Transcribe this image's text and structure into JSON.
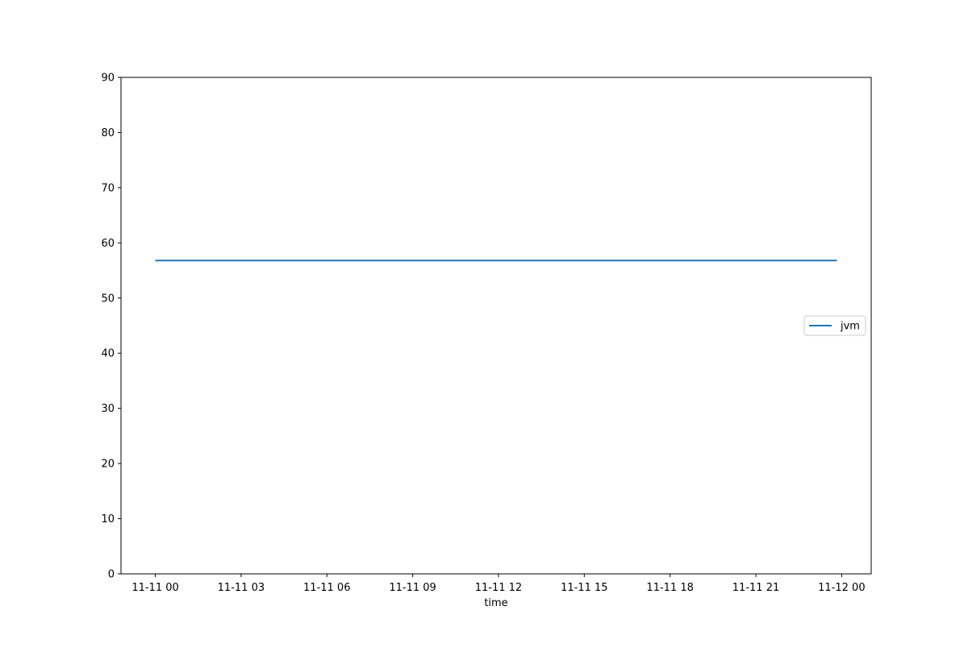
{
  "chart_data": {
    "type": "line",
    "title": "",
    "xlabel": "time",
    "ylabel": "",
    "x": [
      "2024-11-11 00:00",
      "2024-11-11 01:00",
      "2024-11-11 02:00",
      "2024-11-11 03:00",
      "2024-11-11 04:00",
      "2024-11-11 05:00",
      "2024-11-11 06:00",
      "2024-11-11 07:00",
      "2024-11-11 08:00",
      "2024-11-11 09:00",
      "2024-11-11 10:00",
      "2024-11-11 11:00",
      "2024-11-11 12:00",
      "2024-11-11 13:00",
      "2024-11-11 14:00",
      "2024-11-11 15:00",
      "2024-11-11 16:00",
      "2024-11-11 17:00",
      "2024-11-11 18:00",
      "2024-11-11 19:00",
      "2024-11-11 20:00",
      "2024-11-11 21:00",
      "2024-11-11 22:00",
      "2024-11-11 23:00",
      "2024-11-11 23:50"
    ],
    "series": [
      {
        "name": "jvm",
        "color": "#1f77b4",
        "values": [
          56.8,
          56.8,
          56.8,
          56.8,
          56.8,
          56.8,
          56.8,
          56.8,
          56.8,
          56.8,
          56.8,
          56.8,
          56.8,
          56.8,
          56.8,
          56.8,
          56.8,
          56.8,
          56.8,
          56.8,
          56.8,
          56.8,
          56.8,
          56.8,
          56.8
        ]
      }
    ],
    "xlim": [
      "2024-11-10 22:48",
      "2024-11-12 01:02"
    ],
    "ylim": [
      0,
      90
    ],
    "x_ticks": [
      "2024-11-11 00:00",
      "2024-11-11 03:00",
      "2024-11-11 06:00",
      "2024-11-11 09:00",
      "2024-11-11 12:00",
      "2024-11-11 15:00",
      "2024-11-11 18:00",
      "2024-11-11 21:00",
      "2024-11-12 00:00"
    ],
    "x_tick_labels": [
      "11-11 00",
      "11-11 03",
      "11-11 06",
      "11-11 09",
      "11-11 12",
      "11-11 15",
      "11-11 18",
      "11-11 21",
      "11-12 00"
    ],
    "y_ticks": [
      0,
      10,
      20,
      30,
      40,
      50,
      60,
      70,
      80,
      90
    ],
    "grid": false,
    "legend_position": "center-right"
  }
}
